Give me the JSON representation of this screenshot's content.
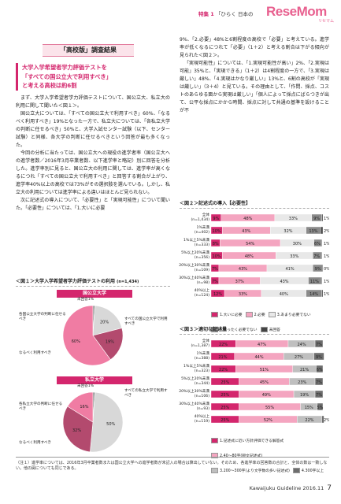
{
  "header": {
    "section_label": "特集 1",
    "title": "「ひらく 日本の",
    "brand": "ReseMom",
    "brand_sub": "リセマム"
  },
  "section_title": "「高校版」調査結果",
  "lead_lines": [
    "大学入学希望者学力評価テストを",
    "「すべての国公立大で利用すべき」",
    "と考える高校は約6割"
  ],
  "left_paragraphs": [
    "まず、大学入学希望者学力評価テストについて、国公立大、私立大の利用に関して聞いた＜図１＞。",
    "国公立大については、「すべての国公立大で利用すべき」60%、「なるべく利用すべき」19%となった一方で、私立大については、「各私立大学の判断に任せるべき」50%と、大学入試センター試験（以下、センター試験）と同様、各大学の判断に任せるべきという回答が最も多くなった。",
    "今回の分析に当たっては、国公立大への現役の進学者率（国公立大への進学者数／2016年3月卒業者数、以下進学率と略記）別に回答を分析した。進学率別に見ると、国公立大の利用に関しては、進学率が高くなるにつれ「すべての国公立大で利用すべき」と回答する割合が上がり、進学率40%以上の高校では73%がその選択肢を選んでいる。しかし、私立大の利用については進学率による違いはほとんど見られない。",
    "次に記述式の導入について、「必要性」と「実現可能性」について聞いた。「必要性」については、「1.大いに必要"
  ],
  "right_paragraphs": [
    "9%、「2.必要」48%と6割程度の高校で「必要」と考えている。進学率が低くなるにつれて「必要」（1＋2）と考える割合は下がる傾向が見られた＜図２＞。",
    "「実現可能性」については、「1.実現可能性が高い」2%、「2.実現は可能」35%と、「実現できる」（1＋2）は4割程度の一方で、「3.実現は厳しい」48%、「4.実現はかなり厳しい」13%と、6割の高校が「実現は厳しい」（3＋4）と見ている。その理由として、「作問、採点、コストのあらゆる面から実現は厳しい」「個人によって採点にばらつきが出て、公平な採点にかから時間、採点に対して共通の基準を設けることが不"
  ],
  "fig1": {
    "title": "＜図１＞大学入学希望者学力評価テストの利用",
    "n": "(n=1,434)",
    "panel1": {
      "title": "国公立大学",
      "labels": [
        "未回答1%",
        "各国公立大学の判断に任せるべき",
        "なるべく利用すべき",
        "すべての国公立大学で利用すべき"
      ],
      "values": [
        1,
        20,
        19,
        60
      ],
      "colors": [
        "#7a7a7a",
        "#d8d8d8",
        "#b34a6e",
        "#f07ca3"
      ]
    },
    "panel2": {
      "title": "私立大学",
      "labels": [
        "未回答1%",
        "各私立大学の判断に任せるべき",
        "なるべく利用すべき",
        "すべての私立大学で利用すべき"
      ],
      "values": [
        1,
        50,
        32,
        16
      ],
      "colors": [
        "#7a7a7a",
        "#d8d8d8",
        "#b34a6e",
        "#f07ca3"
      ]
    }
  },
  "fig2": {
    "title": "＜図２＞記述式の導入【必要性】",
    "rows": [
      {
        "label": "全体\n(n=1,434)",
        "values": [
          9,
          48,
          33,
          9,
          1
        ]
      },
      {
        "label": "1%未満\n(n=402)",
        "values": [
          10,
          43,
          32,
          13,
          2
        ]
      },
      {
        "label": "1%以上5%未満\n(n=333)",
        "values": [
          8,
          54,
          30,
          6,
          1
        ]
      },
      {
        "label": "5%以上20%未満\n(n=356)",
        "values": [
          10,
          48,
          33,
          7,
          1
        ]
      },
      {
        "label": "20%以上30%未満\n(n=109)",
        "values": [
          7,
          43,
          41,
          9,
          0
        ]
      },
      {
        "label": "30%以上40%未満\n(n=98)",
        "values": [
          7,
          37,
          43,
          11,
          1
        ]
      },
      {
        "label": "40%以上\n(n=124)",
        "values": [
          12,
          33,
          40,
          14,
          1
        ]
      }
    ],
    "legend": [
      "1.大いに必要",
      "2.必要",
      "3.あまり必要でない",
      "4.まったく必要でない",
      "未回答"
    ],
    "colors": [
      "#d4266d",
      "#f4a5c0",
      "#e8e8e8",
      "#8a8a8a",
      "#444444"
    ]
  },
  "fig3": {
    "title": "＜図３＞適切な記述量",
    "rows": [
      {
        "label": "全体\n(n=1,387)",
        "values": [
          22,
          47,
          24,
          7
        ]
      },
      {
        "label": "1%未満\n(n=388)",
        "values": [
          21,
          44,
          27,
          9
        ]
      },
      {
        "label": "1%以上5%未満\n(n=323)",
        "values": [
          22,
          51,
          21,
          6
        ]
      },
      {
        "label": "5%以上20%未満\n(n=344)",
        "values": [
          25,
          45,
          23,
          7
        ]
      },
      {
        "label": "20%以上30%未満\n(n=106)",
        "values": [
          25,
          49,
          19,
          7
        ]
      },
      {
        "label": "30%以上40%未満\n(n=93)",
        "values": [
          25,
          55,
          15,
          5
        ]
      },
      {
        "label": "40%以上\n(n=119)",
        "values": [
          25,
          52,
          22,
          2
        ]
      }
    ],
    "legend": [
      "1.記述式に近い方針評価できる解答式",
      "2.40〜80字(短文記述式)",
      "3.200〜300字(より文字数の多い記述式)",
      "4.300字以上"
    ],
    "colors": [
      "#d4266d",
      "#f4a5c0",
      "#bfbfbf",
      "#6e6e6e"
    ]
  },
  "footnote": "（注１）進学率については、2016年3月卒業者数または国公立大学への進学者数が未記入の場合は算出していない。そのため、各進学率の回答数の合計と、全体の数は一致しない。他の図についても同じである。",
  "footer": {
    "text": "Kawaijuku Guideline 2016.11",
    "page": "7"
  }
}
